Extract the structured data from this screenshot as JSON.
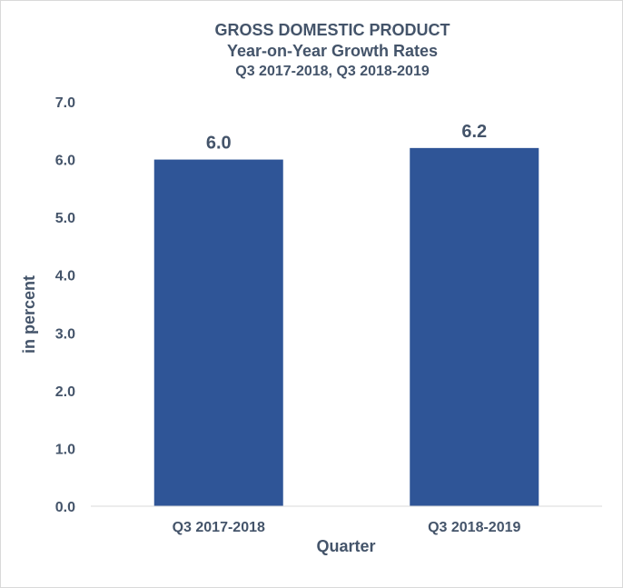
{
  "chart_data": {
    "type": "bar",
    "title": "GROSS DOMESTIC PRODUCT",
    "subtitle_lines": [
      "Year-on-Year Growth Rates",
      "Q3 2017-2018, Q3 2018-2019"
    ],
    "xlabel": "Quarter",
    "ylabel": "in percent",
    "categories": [
      "Q3 2017-2018",
      "Q3 2018-2019"
    ],
    "values": [
      6.0,
      6.2
    ],
    "data_labels": [
      "6.0",
      "6.2"
    ],
    "ylim": [
      0,
      7
    ],
    "yticks": [
      "0.0",
      "1.0",
      "2.0",
      "3.0",
      "4.0",
      "5.0",
      "6.0",
      "7.0"
    ],
    "grid": false,
    "legend": "none",
    "bar_color": "#2f5597",
    "text_color": "#44546a",
    "axis_color": "#d9d9d9"
  }
}
